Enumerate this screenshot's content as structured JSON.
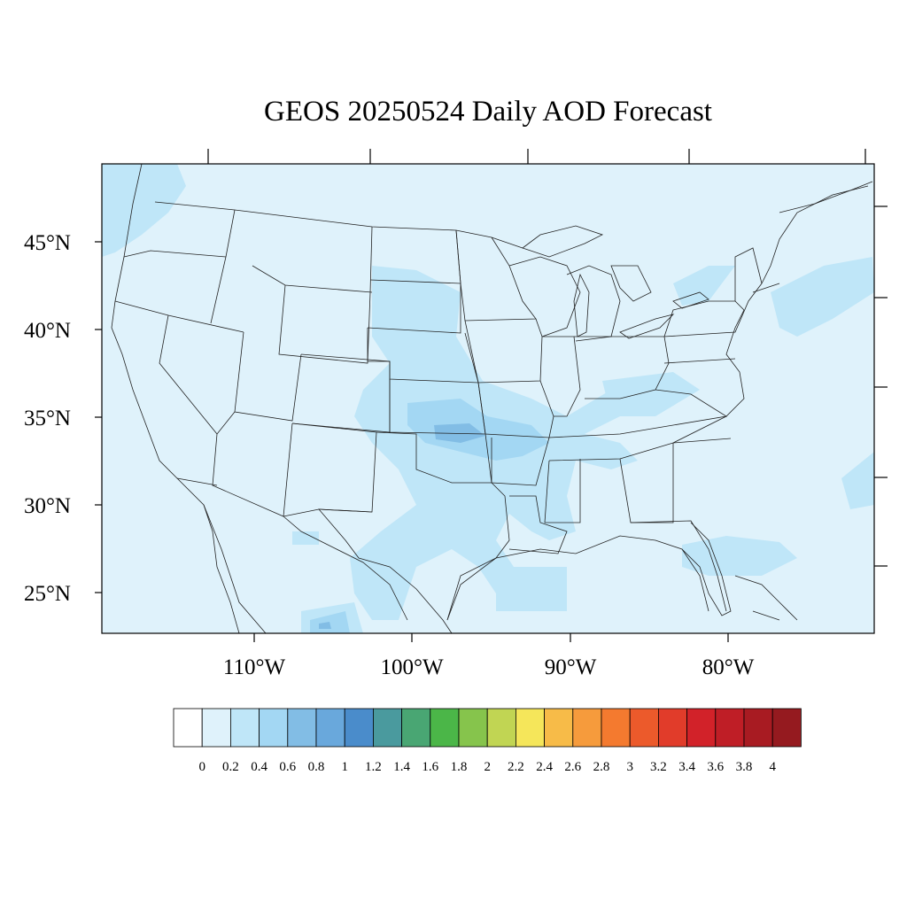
{
  "title": "GEOS 20250524 Daily AOD Forecast",
  "map": {
    "projection": "cylindrical equidistant",
    "region": "Contiguous United States",
    "background_color": "#dff2fb",
    "lon_range": [
      -119,
      -70
    ],
    "lat_range": [
      22.5,
      49.3
    ]
  },
  "lat_labels": [
    "45°N",
    "40°N",
    "35°N",
    "30°N",
    "25°N"
  ],
  "lon_labels": [
    "110°W",
    "100°W",
    "90°W",
    "80°W"
  ],
  "colorbar": {
    "labels": [
      "0",
      "0.2",
      "0.4",
      "0.6",
      "0.8",
      "1",
      "1.2",
      "1.4",
      "1.6",
      "1.8",
      "2",
      "2.2",
      "2.4",
      "2.6",
      "2.8",
      "3",
      "3.2",
      "3.4",
      "3.6",
      "3.8",
      "4"
    ],
    "colors": [
      "#ffffff",
      "#dff2fb",
      "#bfe6f8",
      "#a3d7f3",
      "#82bde5",
      "#69a8dc",
      "#4a8ccb",
      "#4a9a9e",
      "#49a673",
      "#4bb648",
      "#86c44c",
      "#c1d553",
      "#f5e65a",
      "#f7bb48",
      "#f69b3c",
      "#f47a2f",
      "#ec5a2b",
      "#e13c2a",
      "#d22229",
      "#bf1e26",
      "#a81b22",
      "#951a1f"
    ]
  }
}
